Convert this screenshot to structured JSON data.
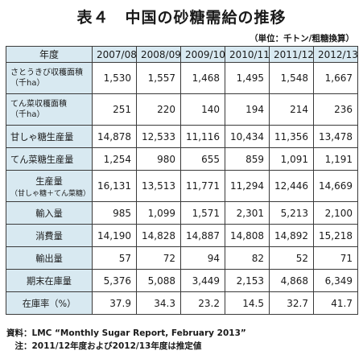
{
  "title": "表４　中国の砂糖需給の推移",
  "unit": "（単位：千トン/粗糖換算）",
  "table": {
    "corner": "年度",
    "years": [
      "2007/08",
      "2008/09",
      "2009/10",
      "2010/11",
      "2011/12",
      "2012/13"
    ],
    "rows": [
      {
        "label": "さとうきび収穫面積",
        "label2": "（千ha）",
        "values": [
          "1,530",
          "1,557",
          "1,468",
          "1,495",
          "1,548",
          "1,667"
        ]
      },
      {
        "label": "てん菜収穫面積",
        "label2": "（千ha）",
        "values": [
          "251",
          "220",
          "140",
          "194",
          "214",
          "236"
        ]
      },
      {
        "label": "甘しゃ糖生産量",
        "values": [
          "14,878",
          "12,533",
          "11,116",
          "10,434",
          "11,356",
          "13,478"
        ]
      },
      {
        "label": "てん菜糖生産量",
        "values": [
          "1,254",
          "980",
          "655",
          "859",
          "1,091",
          "1,191"
        ]
      },
      {
        "label": "生産量",
        "label2": "（甘しゃ糖＋てん菜糖）",
        "values": [
          "16,131",
          "13,513",
          "11,771",
          "11,294",
          "12,446",
          "14,669"
        ]
      },
      {
        "label": "輸入量",
        "values": [
          "985",
          "1,099",
          "1,571",
          "2,301",
          "5,213",
          "2,100"
        ]
      },
      {
        "label": "消費量",
        "values": [
          "14,190",
          "14,828",
          "14,887",
          "14,808",
          "14,892",
          "15,218"
        ]
      },
      {
        "label": "輸出量",
        "values": [
          "57",
          "72",
          "94",
          "82",
          "52",
          "71"
        ]
      },
      {
        "label": "期末在庫量",
        "values": [
          "5,376",
          "5,088",
          "3,449",
          "2,153",
          "4,868",
          "6,349"
        ]
      },
      {
        "label": "在庫率（%）",
        "values": [
          "37.9",
          "34.3",
          "23.2",
          "14.5",
          "32.7",
          "41.7"
        ]
      }
    ]
  },
  "notes": {
    "source": "資料：LMC “Monthly Sugar Report, February 2013”",
    "note": "　注：2011/12年度および2012/13年度は推定値"
  }
}
